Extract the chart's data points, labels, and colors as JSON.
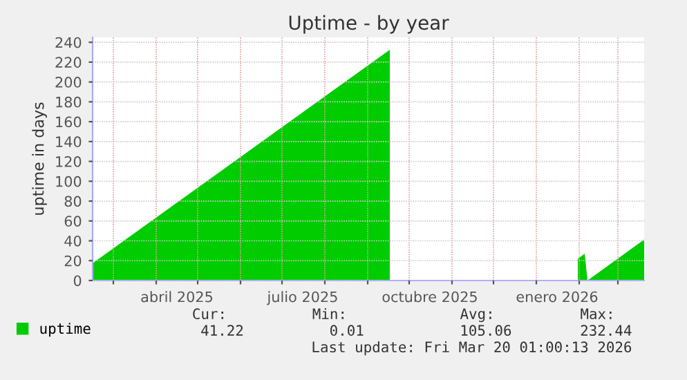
{
  "chart_data": {
    "type": "area",
    "title": "Uptime - by year",
    "ylabel": "uptime in days",
    "x": [
      "2025-02-14",
      "2025-09-17",
      "2025-09-18",
      "2026-01-30",
      "2026-01-31",
      "2026-02-05",
      "2026-02-07",
      "2026-03-20"
    ],
    "series": [
      {
        "name": "uptime",
        "color": "#00cc00",
        "values": [
          17.4,
          232.44,
          null,
          null,
          22,
          27,
          0.01,
          41.22
        ]
      }
    ],
    "xlim": [
      "2025-02-14",
      "2026-03-20"
    ],
    "xticks": [
      {
        "value": "2025-03-01",
        "label": null
      },
      {
        "value": "2025-04-01",
        "label": null
      },
      {
        "value": "2025-04-16",
        "label": "abril 2025"
      },
      {
        "value": "2025-05-01",
        "label": null
      },
      {
        "value": "2025-06-01",
        "label": null
      },
      {
        "value": "2025-07-01",
        "label": null
      },
      {
        "value": "2025-07-16",
        "label": "julio 2025"
      },
      {
        "value": "2025-08-01",
        "label": null
      },
      {
        "value": "2025-09-01",
        "label": null
      },
      {
        "value": "2025-10-01",
        "label": null
      },
      {
        "value": "2025-10-16",
        "label": "octubre 2025"
      },
      {
        "value": "2025-11-01",
        "label": null
      },
      {
        "value": "2025-12-01",
        "label": null
      },
      {
        "value": "2026-01-01",
        "label": null
      },
      {
        "value": "2026-01-16",
        "label": "enero 2026"
      },
      {
        "value": "2026-02-01",
        "label": null
      },
      {
        "value": "2026-03-01",
        "label": null
      }
    ],
    "ylim": [
      0,
      245
    ],
    "yticks": [
      0,
      20,
      40,
      60,
      80,
      100,
      120,
      140,
      160,
      180,
      200,
      220,
      240
    ],
    "grid": true,
    "legend": "bottom left",
    "annotations": [
      "Cur:",
      "Min:",
      "Avg:",
      "Max:",
      "41.22",
      "0.01",
      "105.06",
      "232.44",
      "Last update: Fri Mar 20 01:00:13 2026"
    ]
  }
}
